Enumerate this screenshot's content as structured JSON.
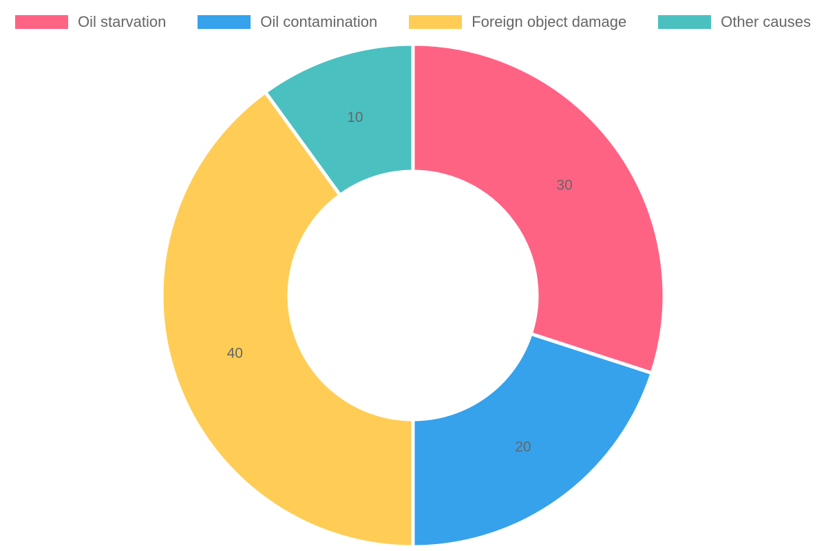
{
  "chart_data": {
    "type": "pie",
    "subtype": "donut",
    "labels": [
      "Oil starvation",
      "Oil contamination",
      "Foreign object damage",
      "Other causes"
    ],
    "values": [
      30,
      20,
      40,
      10
    ],
    "colors": [
      "#FF6384",
      "#36A2EB",
      "#FFCD56",
      "#4BC0C0"
    ],
    "data_label_color": "#666666",
    "slice_border_color": "#ffffff",
    "background_color": "#ffffff",
    "start_angle_deg": 0,
    "direction": "clockwise",
    "inner_radius_ratio": 0.5,
    "legend": {
      "position": "top",
      "text_color": "#666666"
    }
  }
}
